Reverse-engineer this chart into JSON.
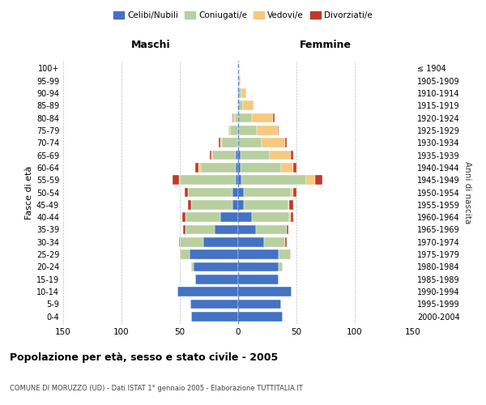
{
  "age_groups": [
    "0-4",
    "5-9",
    "10-14",
    "15-19",
    "20-24",
    "25-29",
    "30-34",
    "35-39",
    "40-44",
    "45-49",
    "50-54",
    "55-59",
    "60-64",
    "65-69",
    "70-74",
    "75-79",
    "80-84",
    "85-89",
    "90-94",
    "95-99",
    "100+"
  ],
  "birth_years": [
    "2000-2004",
    "1995-1999",
    "1990-1994",
    "1985-1989",
    "1980-1984",
    "1975-1979",
    "1970-1974",
    "1965-1969",
    "1960-1964",
    "1955-1959",
    "1950-1954",
    "1945-1949",
    "1940-1944",
    "1935-1939",
    "1930-1934",
    "1925-1929",
    "1920-1924",
    "1915-1919",
    "1910-1914",
    "1905-1909",
    "≤ 1904"
  ],
  "males": {
    "celibi": [
      40,
      41,
      52,
      37,
      38,
      42,
      30,
      20,
      15,
      5,
      5,
      2,
      2,
      2,
      1,
      0,
      0,
      0,
      0,
      0,
      0
    ],
    "coniugati": [
      0,
      0,
      0,
      0,
      2,
      8,
      20,
      25,
      30,
      35,
      38,
      48,
      30,
      20,
      13,
      7,
      3,
      1,
      0,
      0,
      0
    ],
    "vedovi": [
      0,
      0,
      0,
      0,
      0,
      0,
      0,
      0,
      0,
      0,
      0,
      1,
      2,
      1,
      1,
      1,
      1,
      0,
      0,
      0,
      0
    ],
    "divorziati": [
      0,
      0,
      0,
      0,
      0,
      0,
      1,
      2,
      3,
      3,
      3,
      5,
      3,
      1,
      2,
      0,
      1,
      0,
      0,
      0,
      0
    ]
  },
  "females": {
    "nubili": [
      38,
      37,
      46,
      35,
      35,
      35,
      22,
      15,
      12,
      5,
      5,
      3,
      2,
      2,
      0,
      1,
      0,
      0,
      1,
      0,
      0
    ],
    "coniugate": [
      0,
      0,
      0,
      0,
      3,
      10,
      18,
      27,
      32,
      38,
      40,
      55,
      35,
      25,
      20,
      15,
      12,
      4,
      2,
      1,
      0
    ],
    "vedove": [
      0,
      0,
      0,
      0,
      0,
      0,
      0,
      0,
      1,
      1,
      2,
      8,
      10,
      18,
      20,
      18,
      18,
      9,
      4,
      1,
      0
    ],
    "divorziate": [
      0,
      0,
      0,
      0,
      0,
      0,
      2,
      1,
      2,
      3,
      3,
      6,
      3,
      2,
      2,
      1,
      1,
      0,
      0,
      0,
      0
    ]
  },
  "colors": {
    "celibi": "#4472c4",
    "coniugati": "#b8cfa0",
    "vedovi": "#f5c97f",
    "divorziati": "#c0392b"
  },
  "xlim": 150,
  "title": "Popolazione per età, sesso e stato civile - 2005",
  "subtitle": "COMUNE DI MORUZZO (UD) - Dati ISTAT 1° gennaio 2005 - Elaborazione TUTTITALIA.IT",
  "xlabel_left": "Maschi",
  "xlabel_right": "Femmine",
  "ylabel_left": "Fasce di età",
  "ylabel_right": "Anni di nascita",
  "legend_labels": [
    "Celibi/Nubili",
    "Coniugati/e",
    "Vedovi/e",
    "Divorziati/e"
  ],
  "background_color": "#ffffff",
  "bar_height": 0.75
}
